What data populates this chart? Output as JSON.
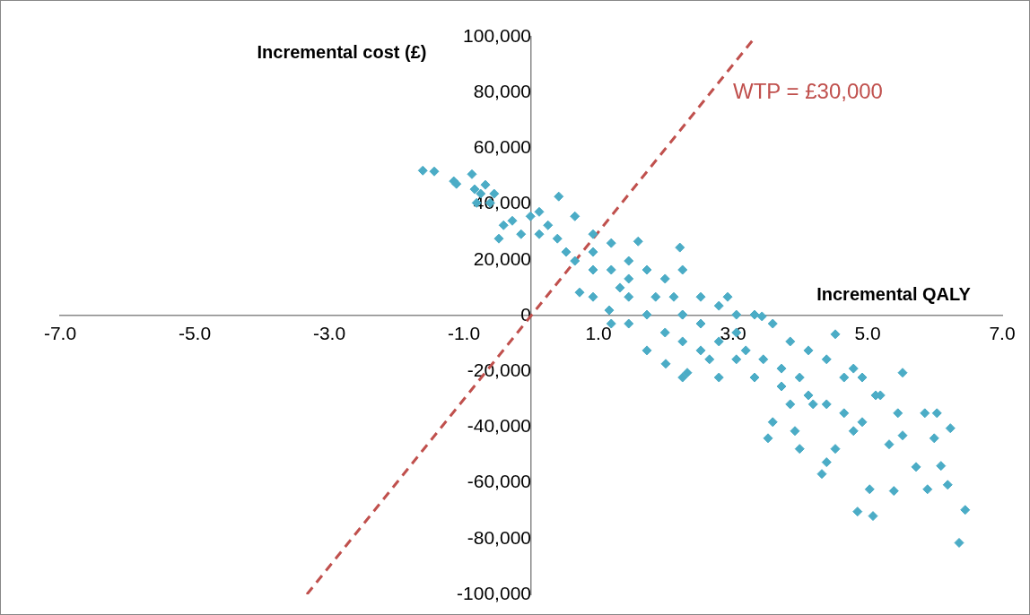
{
  "chart_data": {
    "type": "scatter",
    "xlabel": "Incremental QALY",
    "ylabel": "Incremental cost (£)",
    "legend": false,
    "grid": false,
    "xlim": [
      -7,
      7
    ],
    "ylim": [
      -100000,
      100000
    ],
    "xticks": [
      {
        "value": -7,
        "label": "-7.0"
      },
      {
        "value": -5,
        "label": "-5.0"
      },
      {
        "value": -3,
        "label": "-3.0"
      },
      {
        "value": -1,
        "label": "-1.0"
      },
      {
        "value": 1,
        "label": "1.0"
      },
      {
        "value": 3,
        "label": "3.0"
      },
      {
        "value": 5,
        "label": "5.0"
      },
      {
        "value": 7,
        "label": "7.0"
      }
    ],
    "yticks": [
      {
        "value": -100000,
        "label": "-100,000"
      },
      {
        "value": -80000,
        "label": "-80,000"
      },
      {
        "value": -60000,
        "label": "-60,000"
      },
      {
        "value": -40000,
        "label": "-40,000"
      },
      {
        "value": -20000,
        "label": "-20,000"
      },
      0,
      {
        "value": 20000,
        "label": "20,000"
      },
      {
        "value": 40000,
        "label": "40,000"
      },
      {
        "value": 60000,
        "label": "60,000"
      },
      {
        "value": 80000,
        "label": "80,000"
      },
      {
        "value": 100000,
        "label": "100,000"
      }
    ],
    "series": [
      {
        "marker": "diamond",
        "color": "#4bacc6",
        "x": [
          -1.61,
          -1.44,
          -1.15,
          -1.11,
          -0.88,
          -0.84,
          -0.68,
          -0.75,
          -0.61,
          -0.81,
          -0.55,
          -0.48,
          -0.28,
          -0.41,
          -0.15,
          -0.01,
          0.12,
          0.12,
          0.25,
          0.39,
          0.41,
          0.52,
          0.65,
          0.65,
          0.72,
          0.92,
          0.92,
          0.92,
          0.92,
          1.16,
          1.19,
          1.19,
          1.19,
          1.32,
          1.45,
          1.45,
          1.45,
          1.45,
          1.59,
          1.72,
          1.72,
          1.72,
          1.85,
          1.99,
          1.99,
          2.0,
          2.12,
          2.21,
          2.25,
          2.25,
          2.25,
          2.25,
          2.25,
          2.32,
          2.52,
          2.52,
          2.52,
          2.65,
          2.79,
          2.79,
          2.79,
          2.92,
          3.05,
          3.05,
          3.05,
          3.19,
          3.32,
          3.32,
          3.43,
          3.45,
          3.52,
          3.59,
          3.59,
          3.72,
          3.72,
          3.85,
          3.85,
          3.92,
          3.99,
          3.99,
          4.12,
          4.12,
          4.19,
          4.32,
          4.39,
          4.39,
          4.39,
          4.52,
          4.52,
          4.65,
          4.65,
          4.79,
          4.79,
          4.85,
          4.92,
          4.92,
          5.03,
          5.08,
          5.12,
          5.19,
          5.32,
          5.39,
          5.45,
          5.52,
          5.52,
          5.72,
          5.85,
          5.89,
          5.99,
          6.03,
          6.09,
          6.19,
          6.23,
          6.36,
          6.45
        ],
        "values": [
          52000,
          51700,
          48200,
          47200,
          50700,
          45300,
          46900,
          43700,
          40400,
          40400,
          43700,
          27600,
          34000,
          32400,
          29200,
          35600,
          37200,
          29200,
          32400,
          27600,
          42700,
          22800,
          19600,
          35600,
          8300,
          6700,
          16400,
          29200,
          22800,
          1900,
          -2900,
          26000,
          16400,
          10000,
          -2900,
          19600,
          6700,
          13200,
          26600,
          16400,
          -12500,
          300,
          6700,
          13200,
          -6100,
          -17300,
          6700,
          24400,
          16400,
          -22200,
          -9300,
          300,
          300,
          -20500,
          -12500,
          6700,
          -2900,
          -15700,
          -22200,
          3500,
          -9300,
          6700,
          -15700,
          300,
          -6100,
          -12500,
          -22200,
          300,
          -300,
          -15700,
          -44000,
          -38200,
          -2900,
          -25400,
          -19000,
          -9300,
          -31800,
          -41400,
          -47800,
          -22200,
          -12500,
          -28600,
          -31800,
          -56800,
          -52600,
          -15700,
          -31800,
          -6700,
          -47800,
          -22200,
          -35000,
          -19000,
          -41400,
          -70300,
          -38200,
          -22200,
          -62300,
          -71900,
          -28600,
          -28600,
          -46200,
          -62900,
          -35000,
          -20500,
          -43000,
          -54300,
          -35000,
          -62300,
          -44000,
          -35000,
          -53900,
          -60700,
          -40400,
          -81500,
          -69700
        ]
      },
      {
        "type": "line",
        "marker": "none",
        "name": "WTP = £30,000",
        "color": "#c0504d",
        "line_style": "dashed",
        "x": [
          -3.333,
          3.333
        ],
        "values": [
          -100000,
          100000
        ]
      }
    ]
  }
}
